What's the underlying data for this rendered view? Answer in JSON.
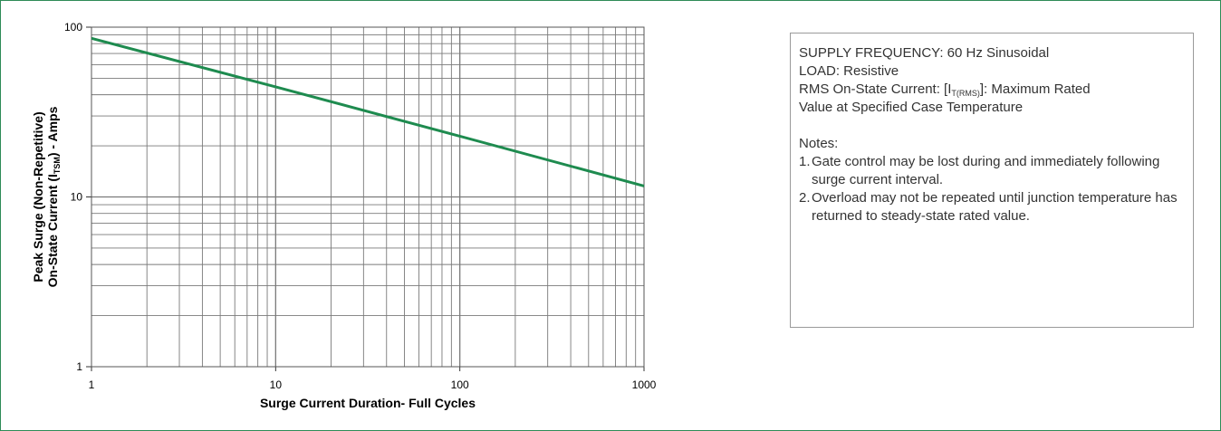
{
  "chart_data": {
    "type": "line",
    "title": "",
    "xlabel": "Surge Current Duration- Full Cycles",
    "ylabel": {
      "line1": "Peak Surge (Non-Repetitive)",
      "line2_prefix": "On-State Current (I",
      "line2_sub": "TSM",
      "line2_suffix": ") - Amps"
    },
    "x_scale": "log",
    "y_scale": "log",
    "xlim": [
      1,
      1000
    ],
    "ylim": [
      1,
      100
    ],
    "x_ticks": [
      1,
      10,
      100,
      1000
    ],
    "x_tick_labels": [
      "1",
      "10",
      "100",
      "1000"
    ],
    "y_ticks": [
      1,
      10,
      100
    ],
    "y_tick_labels": [
      "1",
      "10",
      "100"
    ],
    "grid": true,
    "series": [
      {
        "color": "#1e8b4f",
        "x": [
          1,
          10,
          100,
          1000
        ],
        "y": [
          86,
          44.5,
          22.8,
          11.6
        ]
      }
    ]
  },
  "info": {
    "supply": "SUPPLY FREQUENCY: 60 Hz Sinusoidal",
    "load": "LOAD: Resistive",
    "rms_prefix": "RMS On-State Current: [I",
    "rms_sub": "T(RMS)",
    "rms_suffix": "]: Maximum Rated",
    "rms_line2": "Value at Specified Case Temperature",
    "notes_title": "Notes:",
    "notes": [
      {
        "num": "1.",
        "text": "Gate control may be lost during and immediately following surge current interval."
      },
      {
        "num": "2.",
        "text": "Overload may not be repeated until junction temperature has returned to steady-state rated value."
      }
    ]
  },
  "colors": {
    "border": "#2e8b57",
    "grid": "#7a7a7a",
    "line": "#1e8b4f"
  }
}
